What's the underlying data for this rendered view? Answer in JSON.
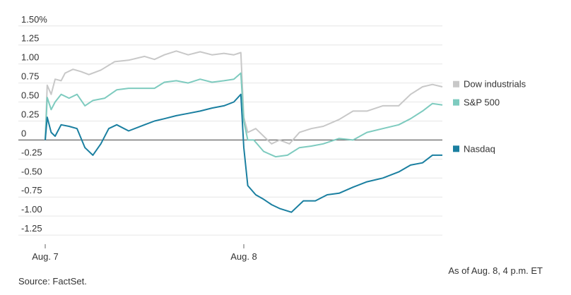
{
  "chart_data": {
    "type": "line",
    "y_tick_labels": [
      "1.50%",
      "1.25",
      "1.00",
      "0.75",
      "0.50",
      "0.25",
      "0",
      "-0.25",
      "-0.50",
      "-0.75",
      "-1.00",
      "-1.25"
    ],
    "y_ticks": [
      1.5,
      1.25,
      1.0,
      0.75,
      0.5,
      0.25,
      0,
      -0.25,
      -0.5,
      -0.75,
      -1.0,
      -1.25
    ],
    "ylim": [
      -1.37,
      1.6
    ],
    "x_tick_labels": [
      "Aug. 7",
      "Aug. 8"
    ],
    "x_ticks": [
      0,
      1
    ],
    "xlim": [
      0,
      2
    ],
    "grid": true,
    "legend_position": "right",
    "series": [
      {
        "name": "Dow industrials",
        "color": "#c8c8c8",
        "points": [
          [
            0.0,
            0.0
          ],
          [
            0.01,
            0.72
          ],
          [
            0.03,
            0.6
          ],
          [
            0.05,
            0.8
          ],
          [
            0.08,
            0.78
          ],
          [
            0.1,
            0.88
          ],
          [
            0.14,
            0.93
          ],
          [
            0.18,
            0.9
          ],
          [
            0.22,
            0.86
          ],
          [
            0.28,
            0.92
          ],
          [
            0.35,
            1.03
          ],
          [
            0.42,
            1.05
          ],
          [
            0.5,
            1.1
          ],
          [
            0.55,
            1.06
          ],
          [
            0.6,
            1.12
          ],
          [
            0.66,
            1.17
          ],
          [
            0.72,
            1.12
          ],
          [
            0.78,
            1.16
          ],
          [
            0.84,
            1.12
          ],
          [
            0.9,
            1.14
          ],
          [
            0.95,
            1.12
          ],
          [
            0.985,
            1.15
          ],
          [
            1.0,
            0.3
          ],
          [
            1.02,
            0.1
          ],
          [
            1.06,
            0.15
          ],
          [
            1.1,
            0.05
          ],
          [
            1.14,
            -0.05
          ],
          [
            1.18,
            0.0
          ],
          [
            1.23,
            -0.05
          ],
          [
            1.28,
            0.1
          ],
          [
            1.34,
            0.15
          ],
          [
            1.4,
            0.18
          ],
          [
            1.48,
            0.27
          ],
          [
            1.55,
            0.38
          ],
          [
            1.62,
            0.38
          ],
          [
            1.7,
            0.45
          ],
          [
            1.78,
            0.45
          ],
          [
            1.84,
            0.6
          ],
          [
            1.9,
            0.7
          ],
          [
            1.95,
            0.73
          ],
          [
            2.0,
            0.7
          ]
        ]
      },
      {
        "name": "S&P 500",
        "color": "#7ecbbf",
        "points": [
          [
            0.0,
            0.0
          ],
          [
            0.01,
            0.56
          ],
          [
            0.03,
            0.4
          ],
          [
            0.05,
            0.5
          ],
          [
            0.08,
            0.6
          ],
          [
            0.12,
            0.55
          ],
          [
            0.16,
            0.6
          ],
          [
            0.2,
            0.45
          ],
          [
            0.24,
            0.52
          ],
          [
            0.3,
            0.55
          ],
          [
            0.36,
            0.66
          ],
          [
            0.42,
            0.68
          ],
          [
            0.5,
            0.68
          ],
          [
            0.55,
            0.68
          ],
          [
            0.6,
            0.76
          ],
          [
            0.66,
            0.78
          ],
          [
            0.72,
            0.75
          ],
          [
            0.78,
            0.8
          ],
          [
            0.84,
            0.76
          ],
          [
            0.9,
            0.78
          ],
          [
            0.95,
            0.8
          ],
          [
            0.985,
            0.88
          ],
          [
            1.0,
            0.25
          ],
          [
            1.02,
            0.0
          ],
          [
            1.05,
            0.0
          ],
          [
            1.1,
            -0.15
          ],
          [
            1.16,
            -0.22
          ],
          [
            1.22,
            -0.2
          ],
          [
            1.28,
            -0.1
          ],
          [
            1.34,
            -0.08
          ],
          [
            1.4,
            -0.05
          ],
          [
            1.48,
            0.02
          ],
          [
            1.55,
            0.0
          ],
          [
            1.62,
            0.1
          ],
          [
            1.7,
            0.15
          ],
          [
            1.78,
            0.2
          ],
          [
            1.84,
            0.28
          ],
          [
            1.9,
            0.38
          ],
          [
            1.95,
            0.48
          ],
          [
            2.0,
            0.46
          ]
        ]
      },
      {
        "name": "Nasdaq",
        "color": "#1a7fa0",
        "points": [
          [
            0.0,
            0.0
          ],
          [
            0.01,
            0.3
          ],
          [
            0.03,
            0.1
          ],
          [
            0.05,
            0.05
          ],
          [
            0.08,
            0.2
          ],
          [
            0.12,
            0.18
          ],
          [
            0.16,
            0.15
          ],
          [
            0.2,
            -0.1
          ],
          [
            0.24,
            -0.2
          ],
          [
            0.28,
            -0.05
          ],
          [
            0.32,
            0.15
          ],
          [
            0.36,
            0.2
          ],
          [
            0.42,
            0.12
          ],
          [
            0.5,
            0.2
          ],
          [
            0.55,
            0.25
          ],
          [
            0.6,
            0.28
          ],
          [
            0.66,
            0.32
          ],
          [
            0.72,
            0.35
          ],
          [
            0.78,
            0.38
          ],
          [
            0.84,
            0.42
          ],
          [
            0.9,
            0.45
          ],
          [
            0.95,
            0.5
          ],
          [
            0.985,
            0.6
          ],
          [
            1.0,
            -0.1
          ],
          [
            1.02,
            -0.6
          ],
          [
            1.06,
            -0.72
          ],
          [
            1.1,
            -0.78
          ],
          [
            1.14,
            -0.85
          ],
          [
            1.18,
            -0.9
          ],
          [
            1.24,
            -0.95
          ],
          [
            1.3,
            -0.8
          ],
          [
            1.36,
            -0.8
          ],
          [
            1.42,
            -0.72
          ],
          [
            1.48,
            -0.7
          ],
          [
            1.55,
            -0.62
          ],
          [
            1.62,
            -0.55
          ],
          [
            1.7,
            -0.5
          ],
          [
            1.78,
            -0.42
          ],
          [
            1.84,
            -0.33
          ],
          [
            1.9,
            -0.3
          ],
          [
            1.95,
            -0.2
          ],
          [
            2.0,
            -0.2
          ]
        ]
      }
    ],
    "zero_line_color": "#666666",
    "grid_color": "#e6e6e6"
  },
  "footer": {
    "source": "Source: FactSet.",
    "as_of": "As of Aug. 8, 4 p.m. ET"
  }
}
